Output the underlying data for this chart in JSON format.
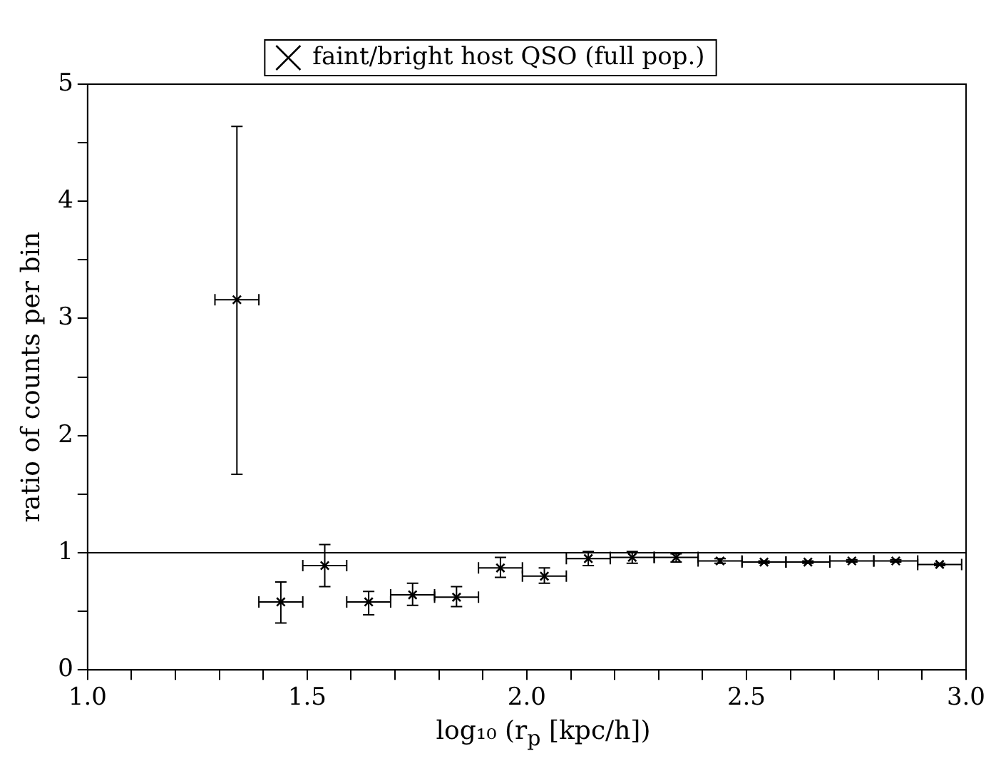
{
  "chart_data": {
    "type": "scatter",
    "xlabel": "log₁₀ (r$_{p}$ [kpc/h])",
    "ylabel": "ratio of counts per bin",
    "x": [
      1.34,
      1.44,
      1.54,
      1.64,
      1.74,
      1.84,
      1.94,
      2.04,
      2.14,
      2.24,
      2.34,
      2.44,
      2.54,
      2.64,
      2.74,
      2.84,
      2.94
    ],
    "series": [
      {
        "name": "faint/bright host QSO (full pop.)",
        "color": "#000000",
        "values": [
          3.16,
          0.58,
          0.89,
          0.58,
          0.64,
          0.62,
          0.87,
          0.8,
          0.95,
          0.96,
          0.96,
          0.93,
          0.92,
          0.92,
          0.93,
          0.93,
          0.9
        ],
        "errors": [
          [
            1.67,
            4.64
          ],
          [
            0.4,
            0.75
          ],
          [
            0.71,
            1.07
          ],
          [
            0.47,
            0.67
          ],
          [
            0.55,
            0.74
          ],
          [
            0.54,
            0.71
          ],
          [
            0.79,
            0.96
          ],
          [
            0.74,
            0.87
          ],
          [
            0.89,
            1.01
          ],
          [
            0.91,
            1.01
          ],
          [
            0.92,
            0.99
          ],
          [
            0.91,
            0.95
          ],
          [
            0.91,
            0.93
          ],
          [
            0.91,
            0.93
          ],
          [
            0.92,
            0.94
          ],
          [
            0.92,
            0.94
          ],
          [
            0.89,
            0.91
          ]
        ],
        "xerrors": [
          0.05,
          0.05,
          0.05,
          0.05,
          0.05,
          0.05,
          0.05,
          0.05,
          0.05,
          0.05,
          0.05,
          0.05,
          0.05,
          0.05,
          0.05,
          0.05,
          0.05
        ]
      }
    ],
    "xlim": [
      1.0,
      3.0
    ],
    "xticks": [
      {
        "value": 1.0,
        "label": "1.0"
      },
      {
        "value": 1.1,
        "label": null
      },
      {
        "value": 1.2,
        "label": null
      },
      {
        "value": 1.3,
        "label": null
      },
      {
        "value": 1.4,
        "label": null
      },
      {
        "value": 1.5,
        "label": "1.5"
      },
      {
        "value": 1.6,
        "label": null
      },
      {
        "value": 1.7,
        "label": null
      },
      {
        "value": 1.8,
        "label": null
      },
      {
        "value": 1.9,
        "label": null
      },
      {
        "value": 2.0,
        "label": "2.0"
      },
      {
        "value": 2.1,
        "label": null
      },
      {
        "value": 2.2,
        "label": null
      },
      {
        "value": 2.3,
        "label": null
      },
      {
        "value": 2.4,
        "label": null
      },
      {
        "value": 2.5,
        "label": "2.5"
      },
      {
        "value": 2.6,
        "label": null
      },
      {
        "value": 2.7,
        "label": null
      },
      {
        "value": 2.8,
        "label": null
      },
      {
        "value": 2.9,
        "label": null
      },
      {
        "value": 3.0,
        "label": "3.0"
      }
    ],
    "ylim": [
      0,
      5
    ],
    "yticks": [
      0,
      {
        "value": 0.5,
        "label": null
      },
      1,
      {
        "value": 1.5,
        "label": null
      },
      2,
      {
        "value": 2.5,
        "label": null
      },
      3,
      {
        "value": 3.5,
        "label": null
      },
      4,
      {
        "value": 4.5,
        "label": null
      },
      5
    ],
    "ref_lines": [
      {
        "axis": "y",
        "value": 1,
        "color": "#000000"
      }
    ],
    "grid": false,
    "legend": "top",
    "marker": "cross"
  }
}
